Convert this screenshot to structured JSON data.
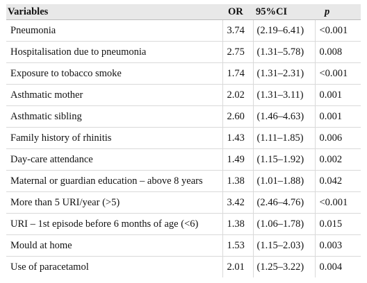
{
  "table": {
    "headers": [
      "Variables",
      "OR",
      "95%CI",
      "p"
    ],
    "rows": [
      [
        "Pneumonia",
        "3.74",
        "(2.19–6.41)",
        "<0.001"
      ],
      [
        "Hospitalisation due to pneumonia",
        "2.75",
        "(1.31–5.78)",
        "0.008"
      ],
      [
        "Exposure to tobacco smoke",
        "1.74",
        "(1.31–2.31)",
        "<0.001"
      ],
      [
        "Asthmatic mother",
        "2.02",
        "(1.31–3.11)",
        "0.001"
      ],
      [
        "Asthmatic sibling",
        "2.60",
        "(1.46–4.63)",
        "0.001"
      ],
      [
        "Family history of rhinitis",
        "1.43",
        "(1.11–1.85)",
        "0.006"
      ],
      [
        "Day-care attendance",
        "1.49",
        "(1.15–1.92)",
        "0.002"
      ],
      [
        "Maternal or guardian education – above 8 years",
        "1.38",
        "(1.01–1.88)",
        "0.042"
      ],
      [
        "More than 5 URI/year (>5)",
        "3.42",
        "(2.46–4.76)",
        "<0.001"
      ],
      [
        "URI – 1st episode before 6 months of age (<6)",
        "1.38",
        "(1.06–1.78)",
        "0.015"
      ],
      [
        "Mould at home",
        "1.53",
        "(1.15–2.03)",
        "0.003"
      ],
      [
        "Use of paracetamol",
        "2.01",
        "(1.25–3.22)",
        "0.004"
      ]
    ]
  }
}
